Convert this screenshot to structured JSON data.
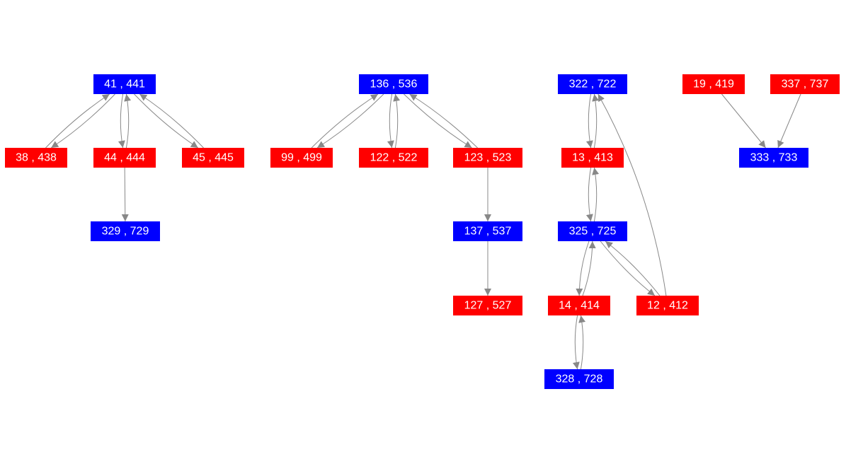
{
  "nodes": [
    {
      "label": "41 , 441",
      "color": "#0000ff"
    },
    {
      "label": "38 , 438",
      "color": "#ff0000"
    },
    {
      "label": "44 , 444",
      "color": "#ff0000"
    },
    {
      "label": "45 , 445",
      "color": "#ff0000"
    },
    {
      "label": "329 , 729",
      "color": "#0000ff"
    },
    {
      "label": "136 , 536",
      "color": "#0000ff"
    },
    {
      "label": "99 , 499",
      "color": "#ff0000"
    },
    {
      "label": "122 , 522",
      "color": "#ff0000"
    },
    {
      "label": "123 , 523",
      "color": "#ff0000"
    },
    {
      "label": "137 , 537",
      "color": "#0000ff"
    },
    {
      "label": "127 , 527",
      "color": "#ff0000"
    },
    {
      "label": "322 , 722",
      "color": "#0000ff"
    },
    {
      "label": "13 , 413",
      "color": "#ff0000"
    },
    {
      "label": "325 , 725",
      "color": "#0000ff"
    },
    {
      "label": "14 , 414",
      "color": "#ff0000"
    },
    {
      "label": "12 , 412",
      "color": "#ff0000"
    },
    {
      "label": "328 , 728",
      "color": "#0000ff"
    },
    {
      "label": "19 , 419",
      "color": "#ff0000"
    },
    {
      "label": "337 , 737",
      "color": "#ff0000"
    },
    {
      "label": "333 , 733",
      "color": "#0000ff"
    }
  ]
}
